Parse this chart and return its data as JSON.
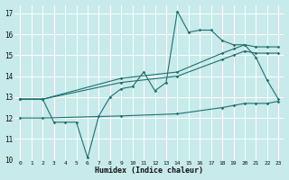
{
  "xlabel": "Humidex (Indice chaleur)",
  "bg_color": "#c8eaea",
  "grid_color": "#ffffff",
  "line_color": "#1e7070",
  "xlim": [
    -0.5,
    23.5
  ],
  "ylim": [
    10,
    17.4
  ],
  "xticks": [
    0,
    1,
    2,
    3,
    4,
    5,
    6,
    7,
    8,
    9,
    10,
    11,
    12,
    13,
    14,
    15,
    16,
    17,
    18,
    19,
    20,
    21,
    22,
    23
  ],
  "yticks": [
    10,
    11,
    12,
    13,
    14,
    15,
    16,
    17
  ],
  "line1_x": [
    0,
    2,
    3,
    4,
    5,
    6,
    7,
    8,
    9,
    10,
    11,
    12,
    13,
    14,
    15,
    16,
    17,
    18,
    19,
    20,
    21,
    22,
    23
  ],
  "line1_y": [
    12.9,
    12.9,
    11.8,
    11.8,
    11.8,
    10.1,
    12.1,
    13.0,
    13.4,
    13.5,
    14.2,
    13.3,
    13.7,
    17.1,
    16.1,
    16.2,
    16.2,
    15.7,
    15.5,
    15.5,
    14.9,
    13.8,
    12.9
  ],
  "line2_x": [
    0,
    2,
    9,
    14,
    18,
    19,
    20,
    21,
    22,
    23
  ],
  "line2_y": [
    12.9,
    12.9,
    13.9,
    14.2,
    15.1,
    15.3,
    15.5,
    15.4,
    15.4,
    15.4
  ],
  "line3_x": [
    0,
    2,
    9,
    14,
    18,
    19,
    20,
    21,
    22,
    23
  ],
  "line3_y": [
    12.9,
    12.9,
    13.7,
    14.0,
    14.8,
    15.0,
    15.2,
    15.1,
    15.1,
    15.1
  ],
  "line4_x": [
    0,
    2,
    9,
    14,
    18,
    19,
    20,
    21,
    22,
    23
  ],
  "line4_y": [
    12.0,
    12.0,
    12.1,
    12.2,
    12.5,
    12.6,
    12.7,
    12.7,
    12.7,
    12.8
  ]
}
